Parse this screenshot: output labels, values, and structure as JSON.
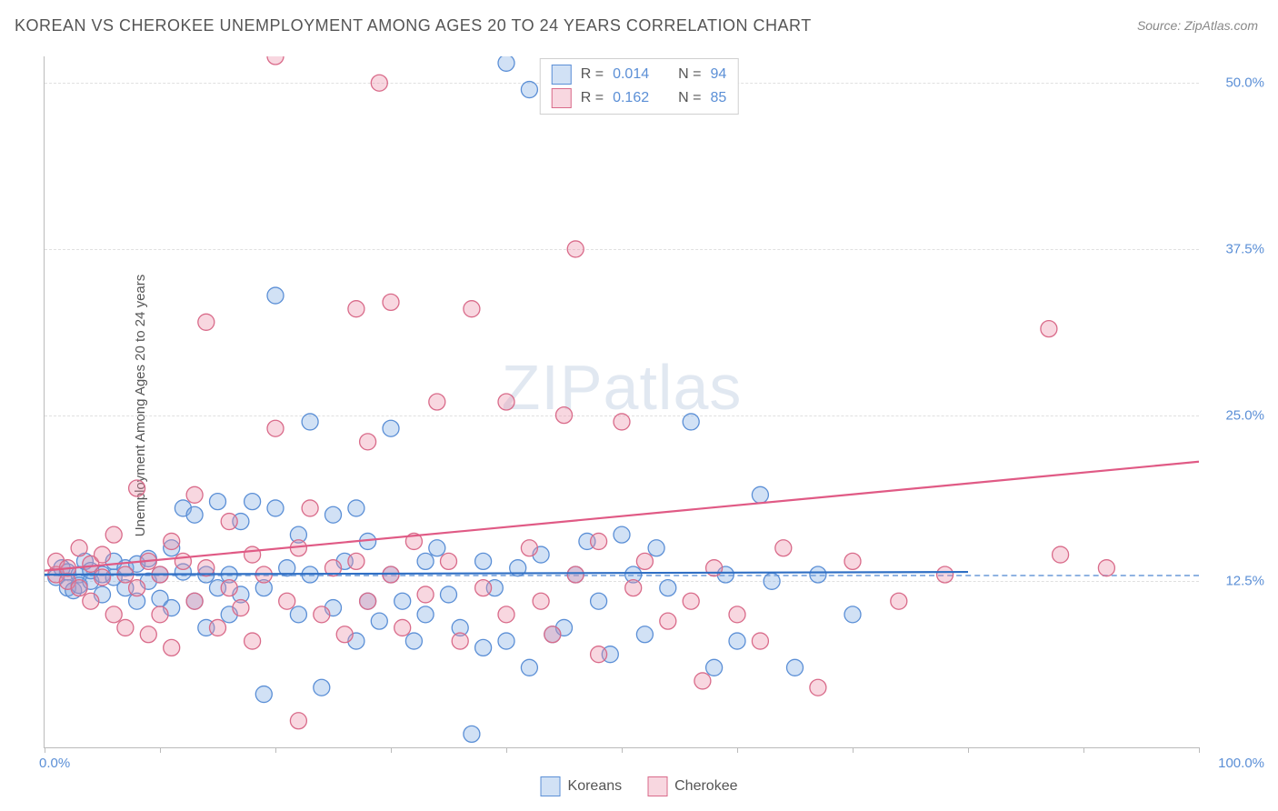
{
  "title": "KOREAN VS CHEROKEE UNEMPLOYMENT AMONG AGES 20 TO 24 YEARS CORRELATION CHART",
  "source": "Source: ZipAtlas.com",
  "ylabel": "Unemployment Among Ages 20 to 24 years",
  "watermark": {
    "part1": "ZIP",
    "part2": "atlas"
  },
  "chart": {
    "type": "scatter",
    "xlim": [
      0,
      100
    ],
    "ylim": [
      0,
      52
    ],
    "xtick_positions": [
      0,
      10,
      20,
      30,
      40,
      50,
      60,
      70,
      80,
      90,
      100
    ],
    "xtick_labels_shown": {
      "0": "0.0%",
      "100": "100.0%"
    },
    "ytick_positions": [
      12.5,
      25.0,
      37.5,
      50.0
    ],
    "ytick_labels": [
      "12.5%",
      "25.0%",
      "37.5%",
      "50.0%"
    ],
    "grid_color": "#e0e0e0",
    "axis_color": "#bbbbbb",
    "background_color": "#ffffff",
    "axis_label_color": "#5b8fd6",
    "marker_radius": 9,
    "marker_stroke_width": 1.3,
    "line_width": 2.2,
    "dash_y": 13.0,
    "series": [
      {
        "name": "Koreans",
        "label": "Koreans",
        "fill": "rgba(123,169,226,0.35)",
        "stroke": "#5b8fd6",
        "line_color": "#2f6fc4",
        "R": "0.014",
        "N": "94",
        "regression": {
          "x1": 0,
          "y1": 13.0,
          "x2": 80,
          "y2": 13.2
        },
        "points": [
          [
            1,
            12.8
          ],
          [
            1.5,
            13.5
          ],
          [
            2,
            12.0
          ],
          [
            2,
            13.2
          ],
          [
            2.5,
            11.8
          ],
          [
            3,
            13.0
          ],
          [
            3,
            12.2
          ],
          [
            3.5,
            14.0
          ],
          [
            4,
            12.5
          ],
          [
            4,
            13.3
          ],
          [
            5,
            13.0
          ],
          [
            5,
            11.5
          ],
          [
            6,
            12.8
          ],
          [
            6,
            14.0
          ],
          [
            7,
            12.0
          ],
          [
            7,
            13.5
          ],
          [
            8,
            11.0
          ],
          [
            8,
            13.8
          ],
          [
            9,
            14.2
          ],
          [
            9,
            12.5
          ],
          [
            10,
            13.0
          ],
          [
            10,
            11.2
          ],
          [
            11,
            15.0
          ],
          [
            11,
            10.5
          ],
          [
            12,
            13.2
          ],
          [
            12,
            18.0
          ],
          [
            13,
            11.0
          ],
          [
            13,
            17.5
          ],
          [
            14,
            13.0
          ],
          [
            14,
            9.0
          ],
          [
            15,
            18.5
          ],
          [
            15,
            12.0
          ],
          [
            16,
            10.0
          ],
          [
            16,
            13.0
          ],
          [
            17,
            17.0
          ],
          [
            17,
            11.5
          ],
          [
            18,
            18.5
          ],
          [
            19,
            12.0
          ],
          [
            19,
            4.0
          ],
          [
            20,
            18.0
          ],
          [
            20,
            34.0
          ],
          [
            21,
            13.5
          ],
          [
            22,
            10.0
          ],
          [
            22,
            16.0
          ],
          [
            23,
            24.5
          ],
          [
            23,
            13.0
          ],
          [
            24,
            4.5
          ],
          [
            25,
            17.5
          ],
          [
            25,
            10.5
          ],
          [
            26,
            14.0
          ],
          [
            27,
            8.0
          ],
          [
            27,
            18.0
          ],
          [
            28,
            11.0
          ],
          [
            28,
            15.5
          ],
          [
            29,
            9.5
          ],
          [
            30,
            24.0
          ],
          [
            30,
            13.0
          ],
          [
            31,
            11.0
          ],
          [
            32,
            8.0
          ],
          [
            33,
            14.0
          ],
          [
            33,
            10.0
          ],
          [
            34,
            15.0
          ],
          [
            35,
            11.5
          ],
          [
            36,
            9.0
          ],
          [
            37,
            1.0
          ],
          [
            38,
            14.0
          ],
          [
            38,
            7.5
          ],
          [
            39,
            12.0
          ],
          [
            40,
            8.0
          ],
          [
            40,
            51.5
          ],
          [
            41,
            13.5
          ],
          [
            42,
            49.5
          ],
          [
            42,
            6.0
          ],
          [
            43,
            14.5
          ],
          [
            44,
            8.5
          ],
          [
            45,
            9.0
          ],
          [
            46,
            13.0
          ],
          [
            47,
            15.5
          ],
          [
            48,
            11.0
          ],
          [
            49,
            7.0
          ],
          [
            50,
            16.0
          ],
          [
            51,
            13.0
          ],
          [
            52,
            8.5
          ],
          [
            53,
            15.0
          ],
          [
            54,
            12.0
          ],
          [
            56,
            24.5
          ],
          [
            58,
            6.0
          ],
          [
            59,
            13.0
          ],
          [
            60,
            8.0
          ],
          [
            62,
            19.0
          ],
          [
            63,
            12.5
          ],
          [
            65,
            6.0
          ],
          [
            67,
            13.0
          ],
          [
            70,
            10.0
          ]
        ]
      },
      {
        "name": "Cherokee",
        "label": "Cherokee",
        "fill": "rgba(235,140,165,0.35)",
        "stroke": "#d96b8a",
        "line_color": "#e05a85",
        "R": "0.162",
        "N": "85",
        "regression": {
          "x1": 0,
          "y1": 13.3,
          "x2": 100,
          "y2": 21.5
        },
        "points": [
          [
            1,
            13.0
          ],
          [
            1,
            14.0
          ],
          [
            2,
            12.5
          ],
          [
            2,
            13.5
          ],
          [
            3,
            15.0
          ],
          [
            3,
            12.0
          ],
          [
            4,
            13.8
          ],
          [
            4,
            11.0
          ],
          [
            5,
            14.5
          ],
          [
            5,
            12.8
          ],
          [
            6,
            10.0
          ],
          [
            6,
            16.0
          ],
          [
            7,
            13.0
          ],
          [
            7,
            9.0
          ],
          [
            8,
            19.5
          ],
          [
            8,
            12.0
          ],
          [
            9,
            14.0
          ],
          [
            9,
            8.5
          ],
          [
            10,
            13.0
          ],
          [
            10,
            10.0
          ],
          [
            11,
            15.5
          ],
          [
            11,
            7.5
          ],
          [
            12,
            14.0
          ],
          [
            13,
            19.0
          ],
          [
            13,
            11.0
          ],
          [
            14,
            32.0
          ],
          [
            14,
            13.5
          ],
          [
            15,
            9.0
          ],
          [
            16,
            17.0
          ],
          [
            16,
            12.0
          ],
          [
            17,
            10.5
          ],
          [
            18,
            14.5
          ],
          [
            18,
            8.0
          ],
          [
            19,
            13.0
          ],
          [
            20,
            24.0
          ],
          [
            20,
            52.0
          ],
          [
            21,
            11.0
          ],
          [
            22,
            15.0
          ],
          [
            22,
            2.0
          ],
          [
            23,
            18.0
          ],
          [
            24,
            10.0
          ],
          [
            25,
            13.5
          ],
          [
            26,
            8.5
          ],
          [
            27,
            33.0
          ],
          [
            27,
            14.0
          ],
          [
            28,
            23.0
          ],
          [
            28,
            11.0
          ],
          [
            29,
            50.0
          ],
          [
            30,
            33.5
          ],
          [
            30,
            13.0
          ],
          [
            31,
            9.0
          ],
          [
            32,
            15.5
          ],
          [
            33,
            11.5
          ],
          [
            34,
            26.0
          ],
          [
            35,
            14.0
          ],
          [
            36,
            8.0
          ],
          [
            37,
            33.0
          ],
          [
            38,
            12.0
          ],
          [
            40,
            26.0
          ],
          [
            40,
            10.0
          ],
          [
            42,
            15.0
          ],
          [
            43,
            11.0
          ],
          [
            44,
            8.5
          ],
          [
            45,
            25.0
          ],
          [
            46,
            37.5
          ],
          [
            46,
            13.0
          ],
          [
            48,
            15.5
          ],
          [
            48,
            7.0
          ],
          [
            50,
            24.5
          ],
          [
            51,
            12.0
          ],
          [
            52,
            14.0
          ],
          [
            54,
            9.5
          ],
          [
            56,
            11.0
          ],
          [
            57,
            5.0
          ],
          [
            58,
            13.5
          ],
          [
            60,
            10.0
          ],
          [
            62,
            8.0
          ],
          [
            64,
            15.0
          ],
          [
            67,
            4.5
          ],
          [
            70,
            14.0
          ],
          [
            74,
            11.0
          ],
          [
            78,
            13.0
          ],
          [
            87,
            31.5
          ],
          [
            92,
            13.5
          ],
          [
            88,
            14.5
          ]
        ]
      }
    ]
  },
  "legend_top": {
    "r_label": "R =",
    "n_label": "N ="
  },
  "legend_bottom": {
    "items": [
      "Koreans",
      "Cherokee"
    ]
  }
}
